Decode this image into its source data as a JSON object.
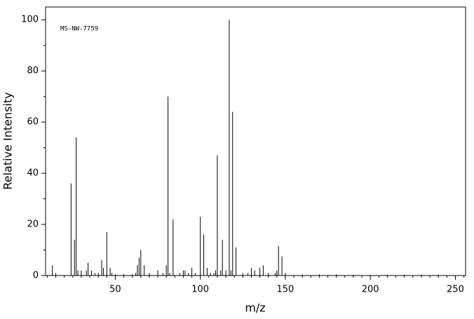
{
  "chart_data": {
    "type": "stem",
    "annotation": "MS-NW-7759",
    "x_label": "m/z",
    "y_label": "Relative Intensity",
    "x": [
      13,
      15,
      24,
      26,
      27,
      28,
      30,
      33,
      34,
      36,
      38,
      40,
      42,
      43,
      45,
      47,
      48,
      50,
      55,
      60,
      62,
      63,
      64,
      65,
      67,
      70,
      75,
      78,
      80,
      81,
      82,
      84,
      88,
      90,
      91,
      93,
      95,
      97,
      100,
      102,
      104,
      106,
      108,
      109,
      110,
      112,
      113,
      115,
      117,
      118,
      119,
      121,
      125,
      128,
      130,
      132,
      135,
      137,
      140,
      144,
      145,
      146,
      148,
      150,
      160,
      170,
      180,
      190,
      200,
      210,
      220,
      230,
      240
    ],
    "values": [
      4,
      1,
      36,
      14,
      54,
      2,
      2,
      2,
      5,
      2,
      1,
      1,
      6,
      3,
      17,
      3,
      1,
      0.5,
      0.5,
      0.5,
      1,
      4,
      7,
      10,
      4,
      1,
      2,
      1,
      4,
      70,
      1,
      22,
      1,
      2,
      2,
      1,
      3,
      1,
      23,
      16,
      3,
      1,
      1,
      2,
      47,
      2,
      14,
      2,
      100,
      2,
      64,
      11,
      1,
      1,
      3,
      2,
      3,
      4,
      1,
      1,
      2,
      11.5,
      7.5,
      1,
      0.4,
      0.4,
      0.4,
      0.3,
      0.3,
      0.3,
      0.3,
      0.3,
      0.3
    ],
    "color": "#000000",
    "xlim": [
      9,
      256
    ],
    "ylim": [
      0,
      105
    ],
    "xticks": [
      50,
      100,
      150,
      200,
      250
    ],
    "yticks": [
      0,
      20,
      40,
      60,
      80,
      100
    ],
    "xminorticks": [
      10,
      15,
      20,
      25,
      30,
      35,
      40,
      45,
      55,
      60,
      65,
      70,
      75,
      80,
      85,
      90,
      95,
      105,
      110,
      115,
      120,
      125,
      130,
      135,
      140,
      145,
      155,
      160,
      165,
      170,
      175,
      180,
      185,
      190,
      195,
      205,
      210,
      215,
      220,
      225,
      230,
      235,
      240,
      245,
      255
    ],
    "yminorticks": [
      10,
      30,
      50,
      70,
      90
    ]
  }
}
